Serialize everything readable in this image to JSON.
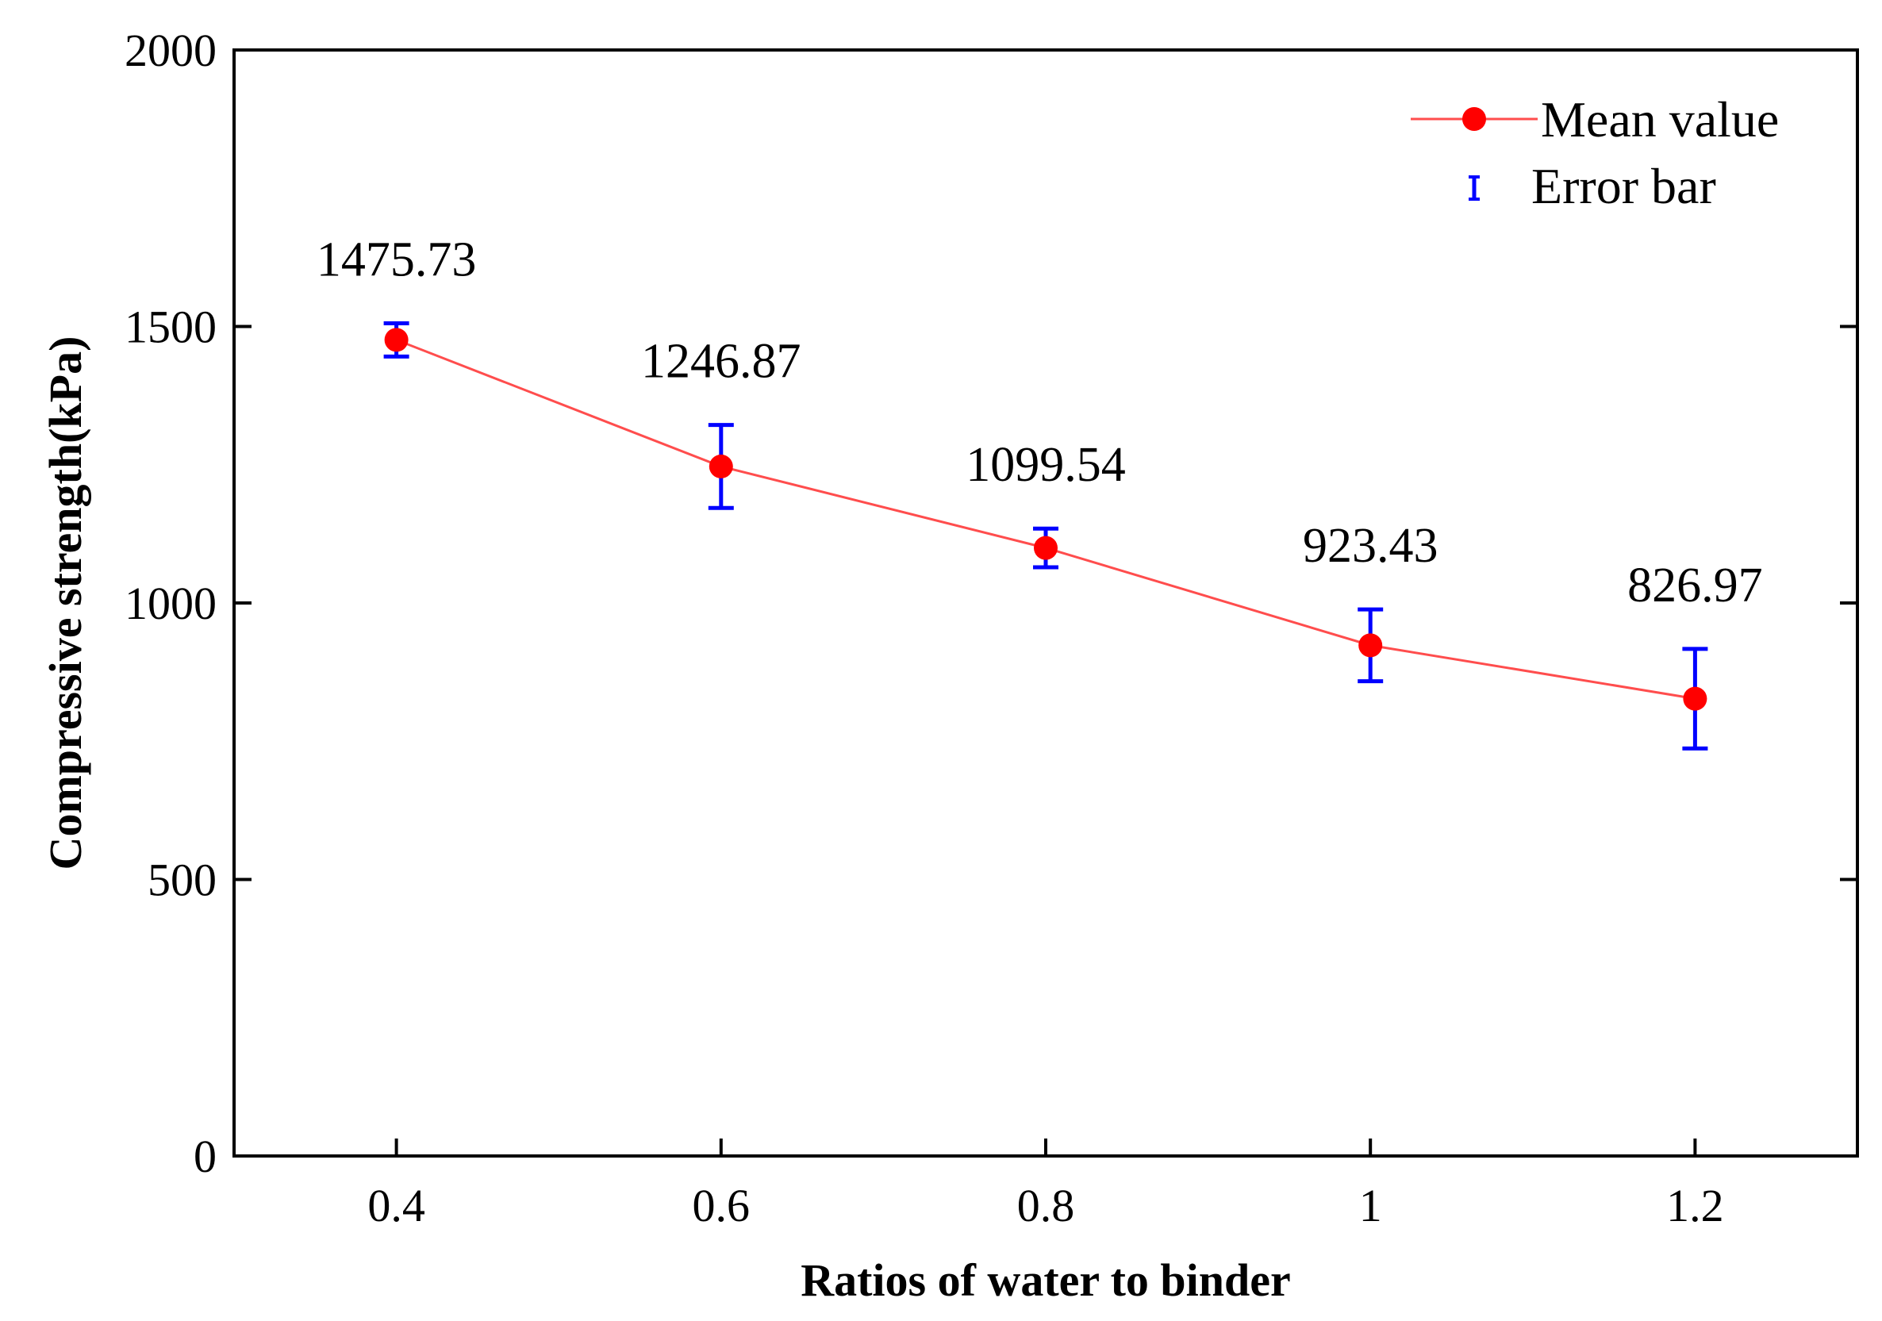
{
  "chart_data": {
    "type": "line",
    "title": "",
    "xlabel": "Ratios of water to binder",
    "ylabel": "Compressive strength(kPa)",
    "xlim": [
      0.3,
      1.3
    ],
    "ylim": [
      0,
      2000
    ],
    "x_ticks": [
      0.4,
      0.6,
      0.8,
      1,
      1.2
    ],
    "x_tick_labels": [
      "0.4",
      "0.6",
      "0.8",
      "1",
      "1.2"
    ],
    "y_ticks": [
      0,
      500,
      1000,
      1500,
      2000
    ],
    "y_tick_labels": [
      "0",
      "500",
      "1000",
      "1500",
      "2000"
    ],
    "grid": false,
    "legend_position": "top-right",
    "series": [
      {
        "name": "Mean value",
        "x": [
          0.4,
          0.6,
          0.8,
          1,
          1.2
        ],
        "values": [
          1475.73,
          1246.87,
          1099.54,
          923.43,
          826.97
        ],
        "error": [
          30,
          75,
          35,
          65,
          90
        ],
        "data_labels": [
          "1475.73",
          "1246.87",
          "1099.54",
          "923.43",
          "826.97"
        ]
      }
    ],
    "legend": [
      {
        "label": "Mean value",
        "kind": "line-marker"
      },
      {
        "label": "Error bar",
        "kind": "errorbar"
      }
    ],
    "colors": {
      "line": "#ff4d4d",
      "marker": "#ff0000",
      "errorbar": "#0000ff",
      "axis": "#000000"
    }
  }
}
